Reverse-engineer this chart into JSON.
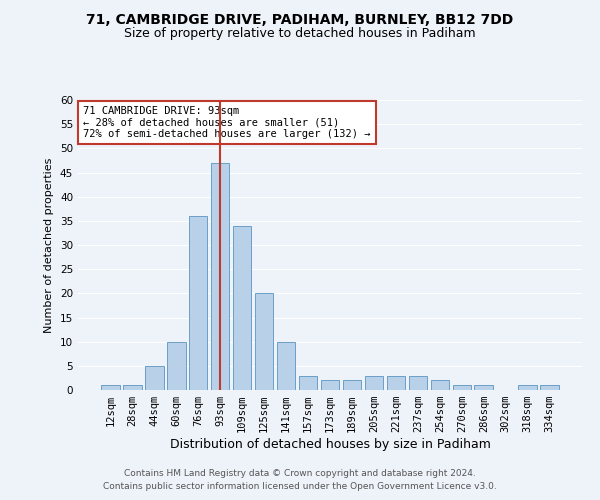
{
  "title1": "71, CAMBRIDGE DRIVE, PADIHAM, BURNLEY, BB12 7DD",
  "title2": "Size of property relative to detached houses in Padiham",
  "xlabel": "Distribution of detached houses by size in Padiham",
  "ylabel": "Number of detached properties",
  "categories": [
    "12sqm",
    "28sqm",
    "44sqm",
    "60sqm",
    "76sqm",
    "93sqm",
    "109sqm",
    "125sqm",
    "141sqm",
    "157sqm",
    "173sqm",
    "189sqm",
    "205sqm",
    "221sqm",
    "237sqm",
    "254sqm",
    "270sqm",
    "286sqm",
    "302sqm",
    "318sqm",
    "334sqm"
  ],
  "values": [
    1,
    1,
    5,
    10,
    36,
    47,
    34,
    20,
    10,
    3,
    2,
    2,
    3,
    3,
    3,
    2,
    1,
    1,
    0,
    1,
    1
  ],
  "bar_color": "#b8d0e8",
  "bar_edge_color": "#6a9fc8",
  "highlight_index": 5,
  "highlight_line_color": "#c0392b",
  "annotation_text": "71 CAMBRIDGE DRIVE: 93sqm\n← 28% of detached houses are smaller (51)\n72% of semi-detached houses are larger (132) →",
  "annotation_box_color": "#ffffff",
  "annotation_box_edge_color": "#c0392b",
  "ylim": [
    0,
    60
  ],
  "yticks": [
    0,
    5,
    10,
    15,
    20,
    25,
    30,
    35,
    40,
    45,
    50,
    55,
    60
  ],
  "footer1": "Contains HM Land Registry data © Crown copyright and database right 2024.",
  "footer2": "Contains public sector information licensed under the Open Government Licence v3.0.",
  "bg_color": "#eef2f9",
  "grid_color": "#ffffff",
  "title1_fontsize": 10,
  "title2_fontsize": 9,
  "xlabel_fontsize": 9,
  "ylabel_fontsize": 8,
  "tick_fontsize": 7.5,
  "footer_fontsize": 6.5,
  "annotation_fontsize": 7.5
}
